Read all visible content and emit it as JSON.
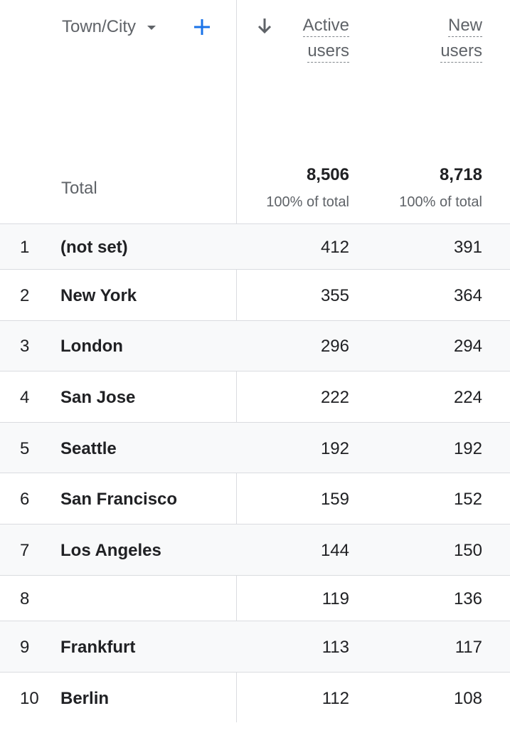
{
  "header": {
    "dimension_label": "Town/City",
    "metric_active": [
      "Active",
      "users"
    ],
    "metric_new": [
      "New",
      "users"
    ]
  },
  "totals": {
    "label": "Total",
    "active_users": "8,506",
    "active_pct": "100% of total",
    "new_users": "8,718",
    "new_pct": "100% of total"
  },
  "rows": [
    {
      "index": "1",
      "city": "(not set)",
      "active": "412",
      "new": "391"
    },
    {
      "index": "2",
      "city": "New York",
      "active": "355",
      "new": "364"
    },
    {
      "index": "3",
      "city": "London",
      "active": "296",
      "new": "294"
    },
    {
      "index": "4",
      "city": "San Jose",
      "active": "222",
      "new": "224"
    },
    {
      "index": "5",
      "city": "Seattle",
      "active": "192",
      "new": "192"
    },
    {
      "index": "6",
      "city": "San Francisco",
      "active": "159",
      "new": "152"
    },
    {
      "index": "7",
      "city": "Los Angeles",
      "active": "144",
      "new": "150"
    },
    {
      "index": "8",
      "city": "",
      "active": "119",
      "new": "136"
    },
    {
      "index": "9",
      "city": "Frankfurt",
      "active": "113",
      "new": "117"
    },
    {
      "index": "10",
      "city": "Berlin",
      "active": "112",
      "new": "108"
    }
  ],
  "colors": {
    "accent": "#1a73e8",
    "text": "#202124",
    "secondary_text": "#5f6368",
    "row_alt_bg": "#f8f9fa",
    "divider": "#dadce0"
  },
  "icons": {
    "dimension_dropdown": "caret-down-icon",
    "add_dimension": "plus-icon",
    "sort": "arrow-down-icon"
  }
}
